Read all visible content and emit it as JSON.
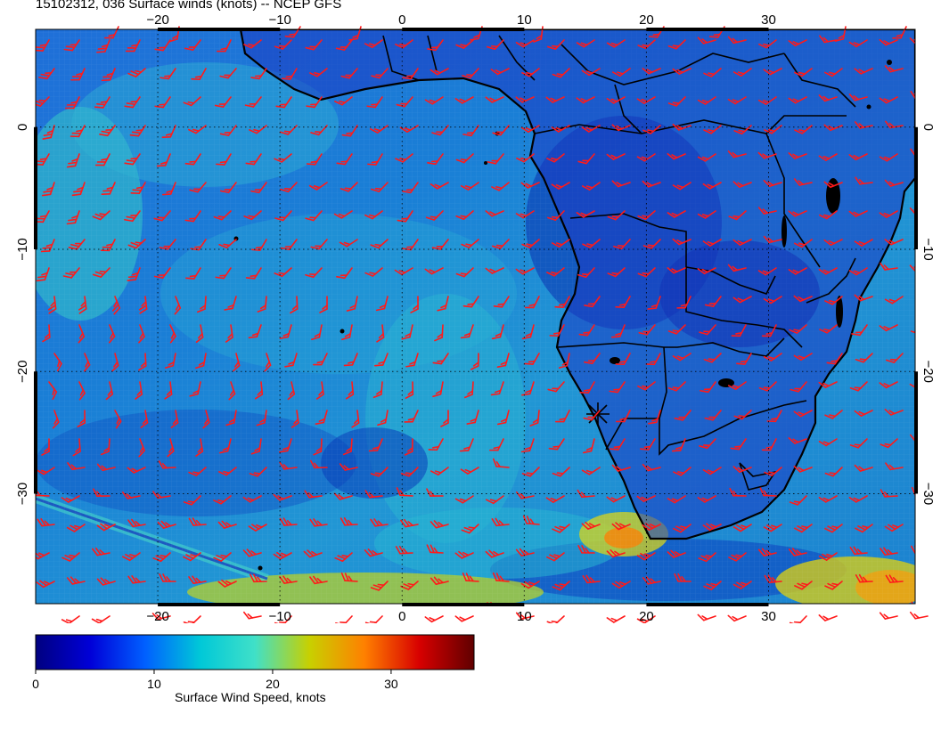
{
  "title": "15102312, 036 Surface winds (knots) -- NCEP GFS",
  "map": {
    "lon_range": [
      -30,
      42
    ],
    "lat_range": [
      8,
      -39
    ],
    "lon_ticks": [
      {
        "value": -20,
        "label": "−20"
      },
      {
        "value": -10,
        "label": "−10"
      },
      {
        "value": 0,
        "label": "0"
      },
      {
        "value": 10,
        "label": "10"
      },
      {
        "value": 20,
        "label": "20"
      },
      {
        "value": 30,
        "label": "30"
      }
    ],
    "lat_ticks": [
      {
        "value": 0,
        "label": "0"
      },
      {
        "value": -10,
        "label": "−10"
      },
      {
        "value": -20,
        "label": "−20"
      },
      {
        "value": -30,
        "label": "−30"
      }
    ],
    "grid": true,
    "barb_color": "#ff1a1a",
    "coastline_color": "#000000",
    "field_colors": [
      "#00008f",
      "#0030c8",
      "#1a78d8",
      "#22b4cf",
      "#3cd0c4",
      "#b4cc10",
      "#ff9800",
      "#d40000"
    ]
  },
  "colorbar": {
    "min": 0,
    "max": 37,
    "ticks": [
      {
        "value": 0,
        "label": "0"
      },
      {
        "value": 10,
        "label": "10"
      },
      {
        "value": 20,
        "label": "20"
      },
      {
        "value": 30,
        "label": "30"
      }
    ],
    "label": "Surface Wind Speed, knots",
    "colors": [
      "#000080",
      "#0000d8",
      "#0060ff",
      "#00c8d8",
      "#40e0c8",
      "#c8d000",
      "#ff8000",
      "#d80000",
      "#600000"
    ]
  }
}
